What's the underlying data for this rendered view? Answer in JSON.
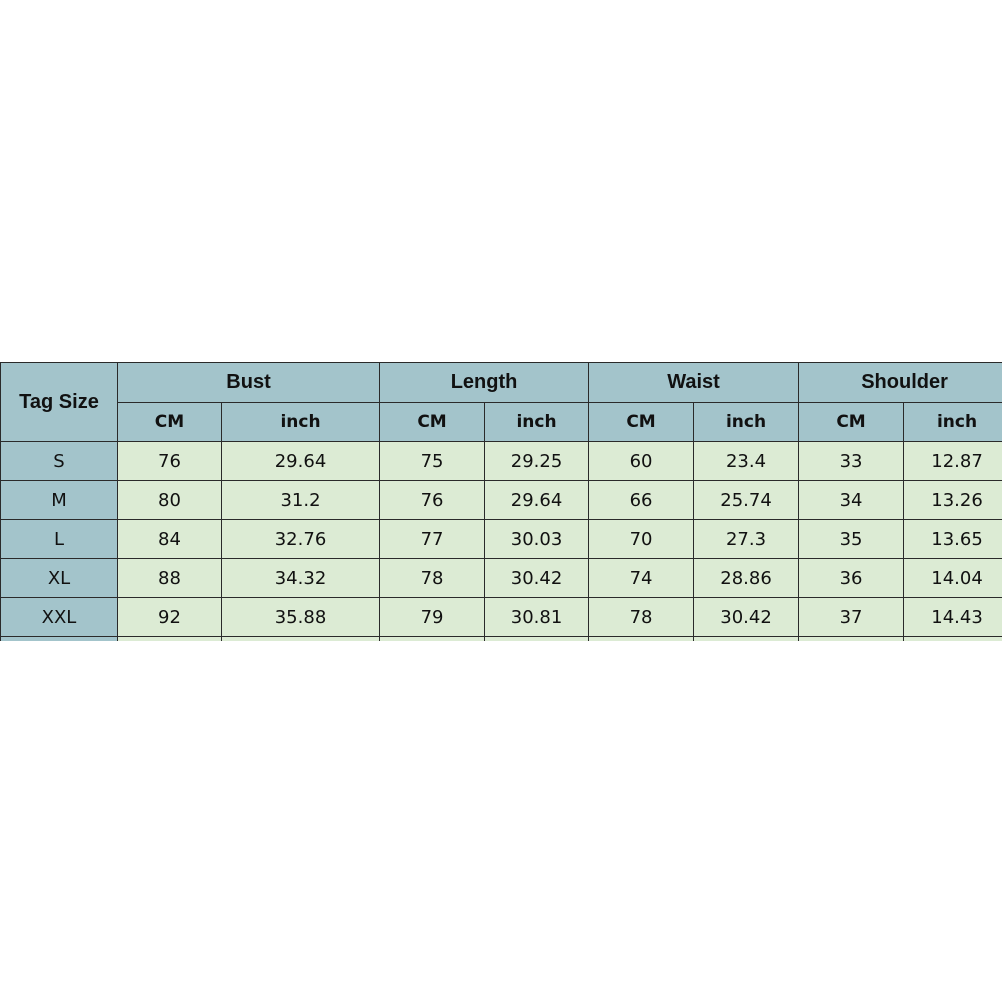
{
  "table": {
    "row_header_label": "Tag Size",
    "groups": [
      "Bust",
      "Length",
      "Waist",
      "Shoulder"
    ],
    "units": [
      "CM",
      "inch"
    ],
    "rows": [
      {
        "size": "S",
        "values": [
          "76",
          "29.64",
          "75",
          "29.25",
          "60",
          "23.4",
          "33",
          "12.87"
        ]
      },
      {
        "size": "M",
        "values": [
          "80",
          "31.2",
          "76",
          "29.64",
          "66",
          "25.74",
          "34",
          "13.26"
        ]
      },
      {
        "size": "L",
        "values": [
          "84",
          "32.76",
          "77",
          "30.03",
          "70",
          "27.3",
          "35",
          "13.65"
        ]
      },
      {
        "size": "XL",
        "values": [
          "88",
          "34.32",
          "78",
          "30.42",
          "74",
          "28.86",
          "36",
          "14.04"
        ]
      },
      {
        "size": "XXL",
        "values": [
          "92",
          "35.88",
          "79",
          "30.81",
          "78",
          "30.42",
          "37",
          "14.43"
        ]
      }
    ]
  },
  "colors": {
    "header_bg": "#a3c4cb",
    "cell_bg": "#dcebd4"
  }
}
